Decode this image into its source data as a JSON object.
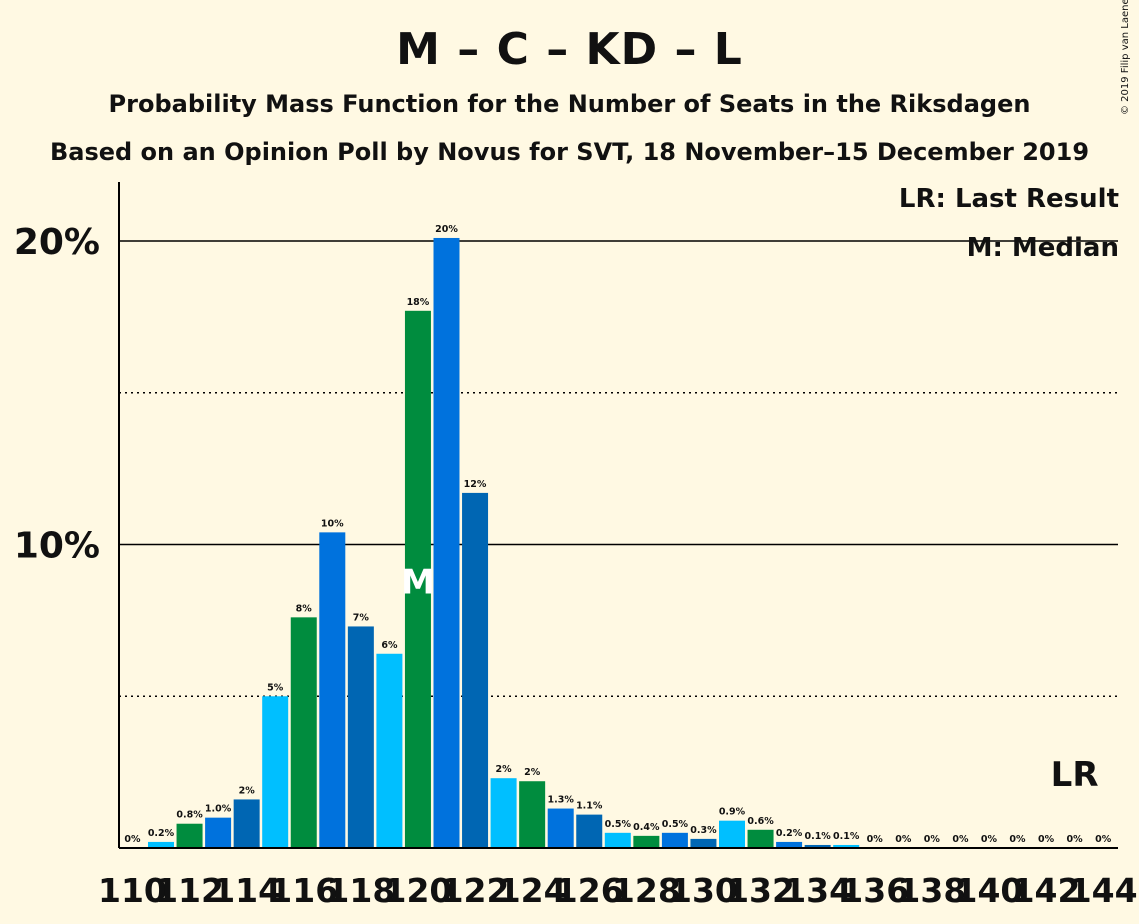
{
  "title": "M – C – KD – L",
  "subtitle": "Probability Mass Function for the Number of Seats in the Riksdagen",
  "subtitle2": "Based on an Opinion Poll by Novus for SVT, 18 November–15 December 2019",
  "copyright": "© 2019 Filip van Laenen",
  "legend": {
    "last_result": "LR: Last Result",
    "median": "M: Median"
  },
  "markers": {
    "median_label": "M",
    "last_result_label": "LR"
  },
  "colors": {
    "background": "#FFF9E3",
    "palette": [
      "#0066B3",
      "#00BFFF",
      "#008C3E",
      "#0072DD"
    ]
  },
  "chart_data": {
    "type": "bar",
    "x": [
      110,
      111,
      112,
      113,
      114,
      115,
      116,
      117,
      118,
      119,
      120,
      121,
      122,
      123,
      124,
      125,
      126,
      127,
      128,
      129,
      130,
      131,
      132,
      133,
      134,
      135,
      136,
      137,
      138,
      139,
      140,
      141,
      142,
      143,
      144
    ],
    "values": [
      0,
      0.2,
      0.8,
      1.0,
      1.6,
      5.0,
      7.6,
      10.4,
      7.3,
      6.4,
      17.7,
      20.1,
      11.7,
      2.3,
      2.2,
      1.3,
      1.1,
      0.5,
      0.4,
      0.5,
      0.3,
      0.9,
      0.6,
      0.2,
      0.1,
      0.1,
      0,
      0,
      0,
      0,
      0,
      0,
      0,
      0,
      0
    ],
    "labels": [
      "0%",
      "0.2%",
      "0.8%",
      "1.0%",
      "2%",
      "5%",
      "8%",
      "10%",
      "7%",
      "6%",
      "18%",
      "20%",
      "12%",
      "2%",
      "2%",
      "1.3%",
      "1.1%",
      "0.5%",
      "0.4%",
      "0.5%",
      "0.3%",
      "0.9%",
      "0.6%",
      "0.2%",
      "0.1%",
      "0.1%",
      "0%",
      "0%",
      "0%",
      "0%",
      "0%",
      "0%",
      "0%",
      "0%",
      "0%"
    ],
    "tick_labels": [
      "110",
      "112",
      "114",
      "116",
      "118",
      "120",
      "122",
      "124",
      "126",
      "128",
      "130",
      "132",
      "134",
      "136",
      "138",
      "140",
      "142",
      "144"
    ],
    "ytick_labels": [
      "10%",
      "20%"
    ],
    "ylim": [
      0,
      22
    ],
    "median": 120,
    "last_result": 143,
    "grid": "solid at 10% and 20%, dotted at 5% and 15%"
  }
}
